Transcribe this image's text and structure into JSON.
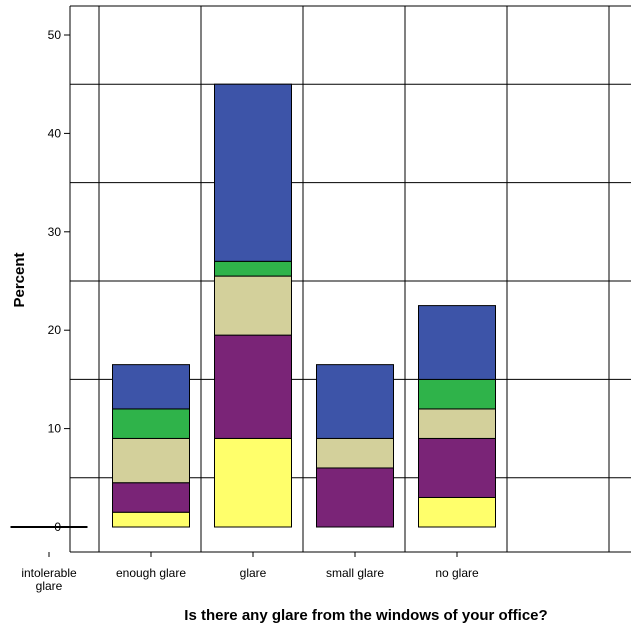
{
  "chart_data": {
    "type": "bar",
    "stacked": true,
    "xlabel": "Is there any glare from the windows of your office?",
    "ylabel": "Percent",
    "ylim": [
      0,
      53
    ],
    "yticks": [
      0,
      10,
      20,
      30,
      40,
      50
    ],
    "grid": true,
    "categories": [
      [
        "intolerable",
        "glare"
      ],
      [
        "enough glare"
      ],
      [
        "glare"
      ],
      [
        "small glare"
      ],
      [
        "no glare"
      ]
    ],
    "series": [
      {
        "color": "#ffff6b",
        "values": [
          0,
          1.5,
          9.0,
          0,
          3.0
        ]
      },
      {
        "color": "#7a2477",
        "values": [
          0,
          3.0,
          10.5,
          6.0,
          6.0
        ]
      },
      {
        "color": "#d3d09b",
        "values": [
          0,
          4.5,
          6.0,
          3.0,
          3.0
        ]
      },
      {
        "color": "#2fb34a",
        "values": [
          0,
          3.0,
          1.5,
          0,
          3.0
        ]
      },
      {
        "color": "#3d54a8",
        "values": [
          0,
          4.5,
          18.0,
          7.5,
          7.5
        ]
      }
    ]
  }
}
